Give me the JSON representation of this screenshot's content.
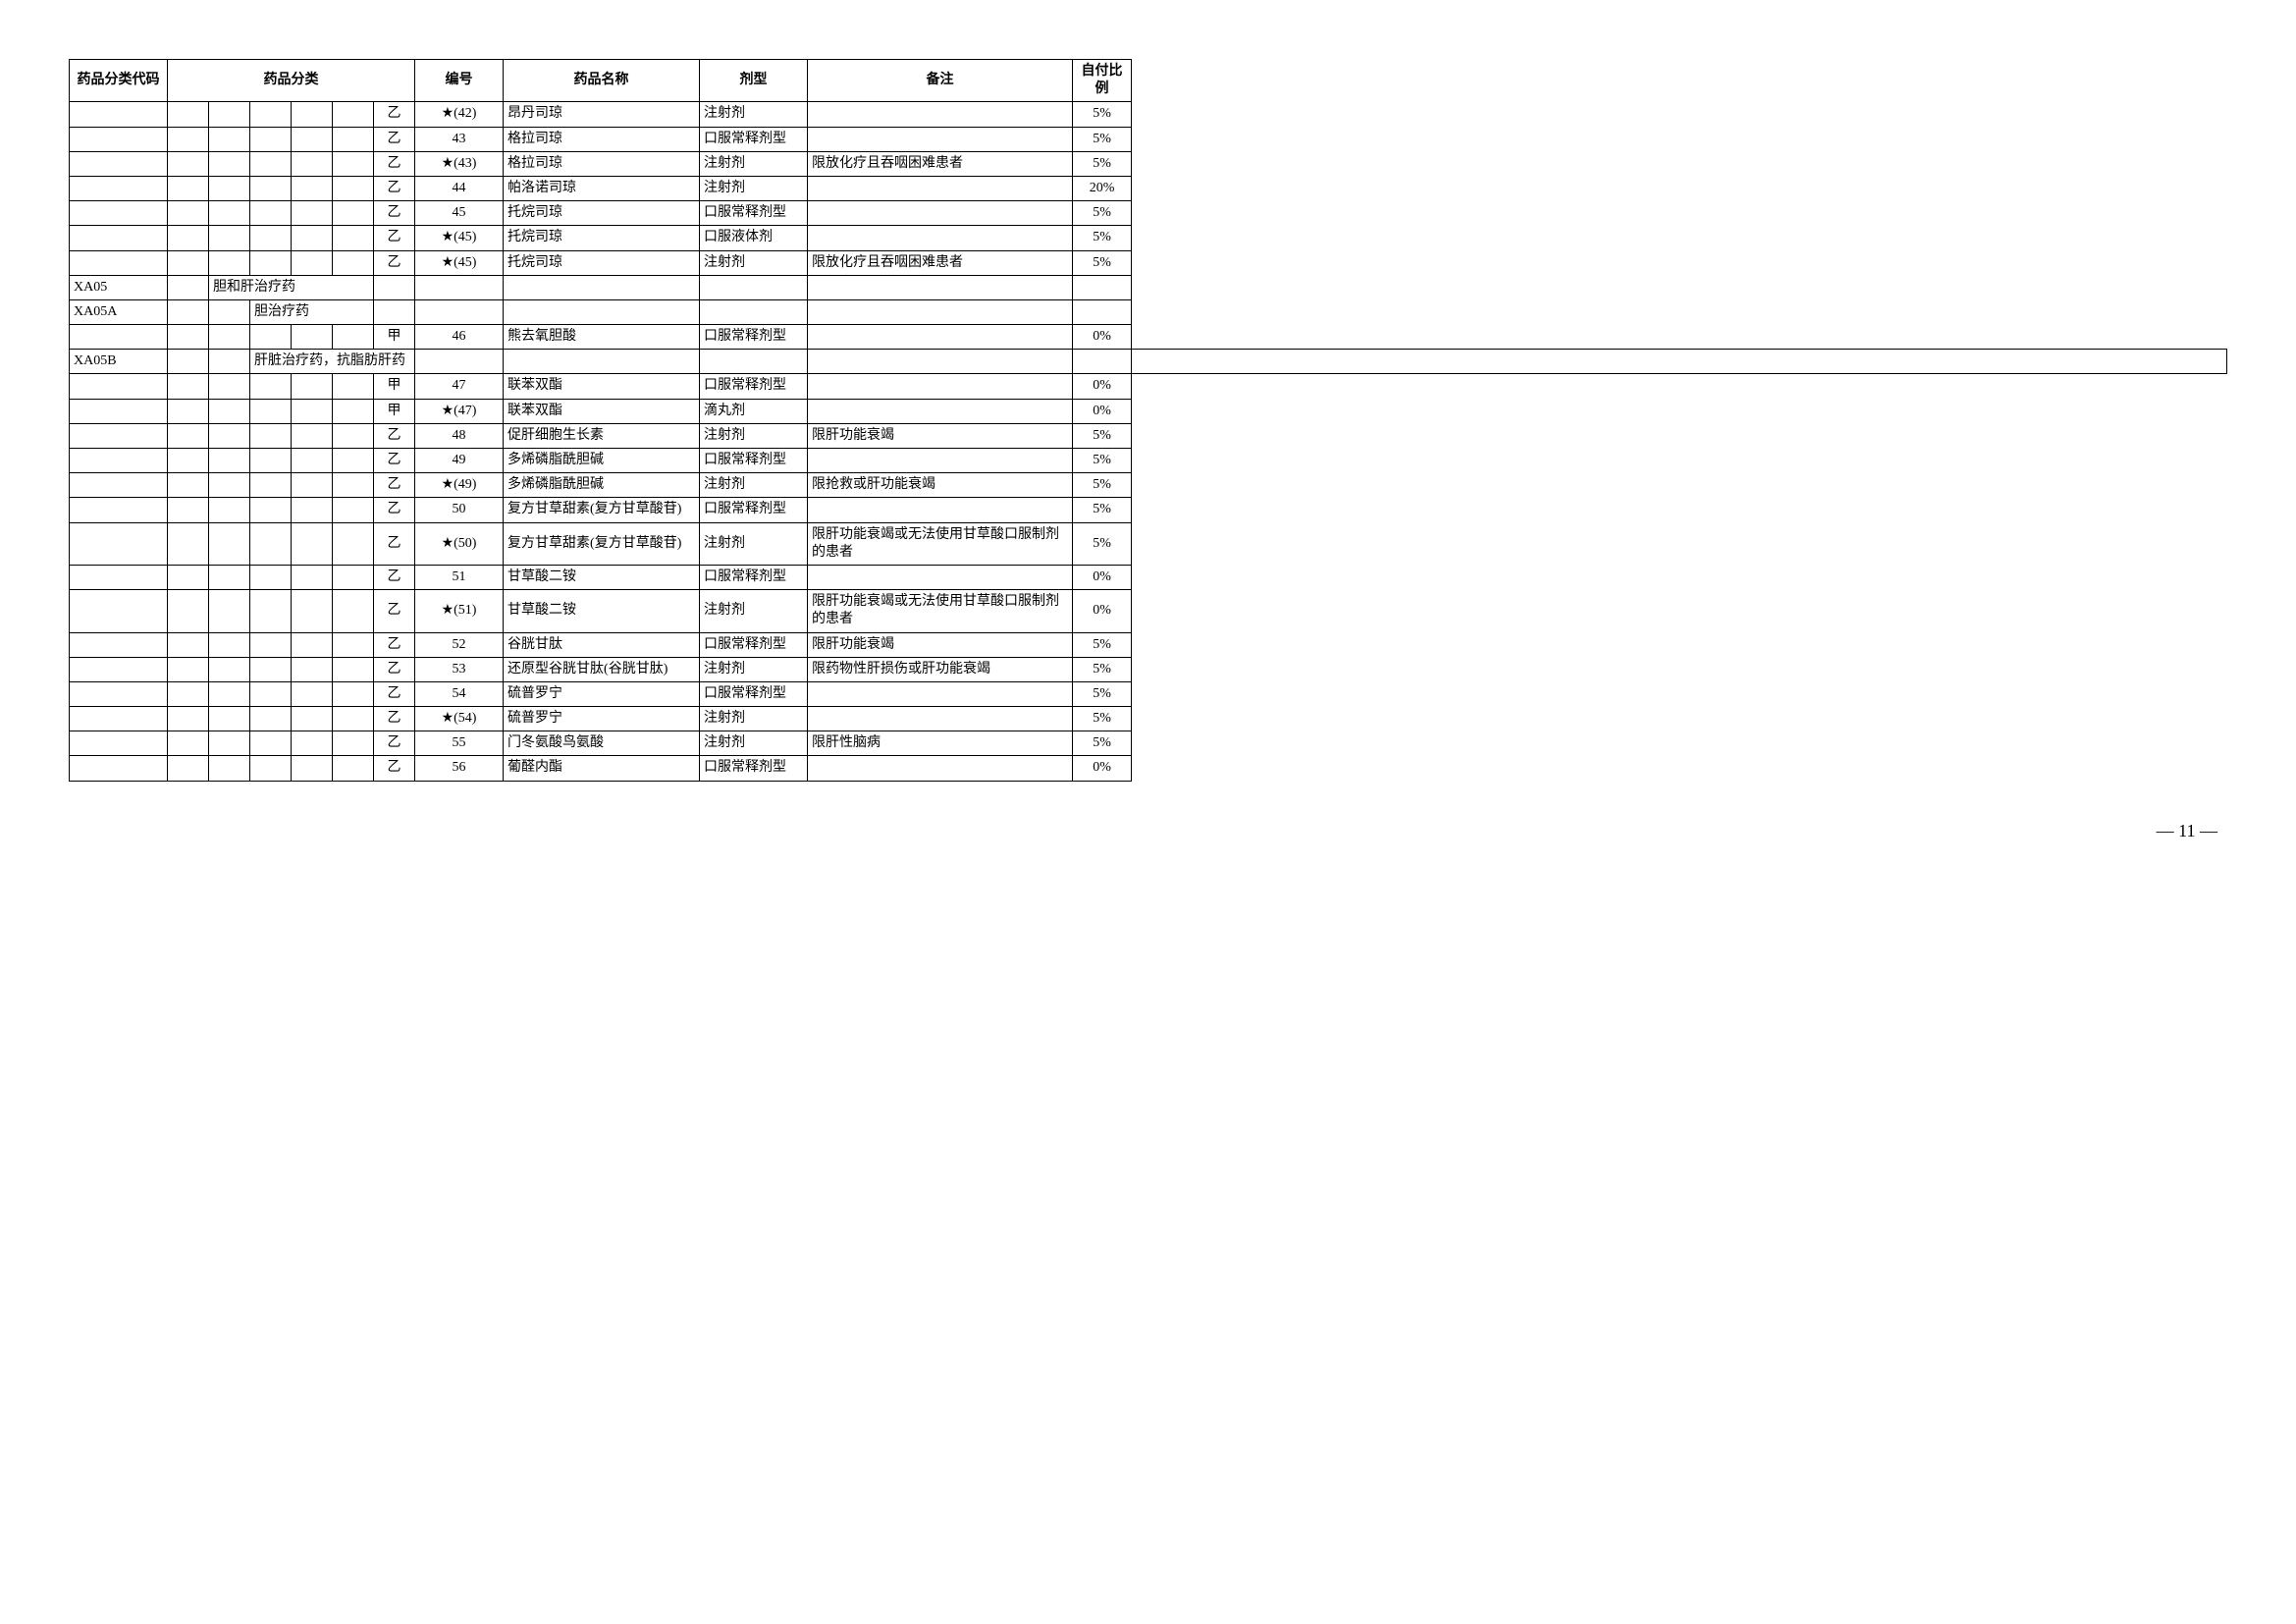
{
  "headers": {
    "code": "药品分类代码",
    "category": "药品分类",
    "num": "编号",
    "name": "药品名称",
    "form": "剂型",
    "note": "备注",
    "ratio": "自付比例"
  },
  "rows": [
    {
      "code": "",
      "cat1": "",
      "cat2": "",
      "cat3": "",
      "cat4": "",
      "cat5": "",
      "grade": "乙",
      "num": "★(42)",
      "name": "昂丹司琼",
      "form": "注射剂",
      "note": "",
      "ratio": "5%"
    },
    {
      "code": "",
      "cat1": "",
      "cat2": "",
      "cat3": "",
      "cat4": "",
      "cat5": "",
      "grade": "乙",
      "num": "43",
      "name": "格拉司琼",
      "form": "口服常释剂型",
      "note": "",
      "ratio": "5%"
    },
    {
      "code": "",
      "cat1": "",
      "cat2": "",
      "cat3": "",
      "cat4": "",
      "cat5": "",
      "grade": "乙",
      "num": "★(43)",
      "name": "格拉司琼",
      "form": "注射剂",
      "note": "限放化疗且吞咽困难患者",
      "ratio": "5%"
    },
    {
      "code": "",
      "cat1": "",
      "cat2": "",
      "cat3": "",
      "cat4": "",
      "cat5": "",
      "grade": "乙",
      "num": "44",
      "name": "帕洛诺司琼",
      "form": "注射剂",
      "note": "",
      "ratio": "20%"
    },
    {
      "code": "",
      "cat1": "",
      "cat2": "",
      "cat3": "",
      "cat4": "",
      "cat5": "",
      "grade": "乙",
      "num": "45",
      "name": "托烷司琼",
      "form": "口服常释剂型",
      "note": "",
      "ratio": "5%"
    },
    {
      "code": "",
      "cat1": "",
      "cat2": "",
      "cat3": "",
      "cat4": "",
      "cat5": "",
      "grade": "乙",
      "num": "★(45)",
      "name": "托烷司琼",
      "form": "口服液体剂",
      "note": "",
      "ratio": "5%"
    },
    {
      "code": "",
      "cat1": "",
      "cat2": "",
      "cat3": "",
      "cat4": "",
      "cat5": "",
      "grade": "乙",
      "num": "★(45)",
      "name": "托烷司琼",
      "form": "注射剂",
      "note": "限放化疗且吞咽困难患者",
      "ratio": "5%"
    },
    {
      "code": "XA05",
      "cat1": "",
      "cat2": "胆和肝治疗药",
      "cat3": "",
      "cat4": "",
      "cat5": "",
      "grade": "",
      "num": "",
      "name": "",
      "form": "",
      "note": "",
      "ratio": "",
      "span2": 4
    },
    {
      "code": "XA05A",
      "cat1": "",
      "cat2": "",
      "cat3": "胆治疗药",
      "cat4": "",
      "cat5": "",
      "grade": "",
      "num": "",
      "name": "",
      "form": "",
      "note": "",
      "ratio": "",
      "span3": 3
    },
    {
      "code": "",
      "cat1": "",
      "cat2": "",
      "cat3": "",
      "cat4": "",
      "cat5": "",
      "grade": "甲",
      "num": "46",
      "name": "熊去氧胆酸",
      "form": "口服常释剂型",
      "note": "",
      "ratio": "0%"
    },
    {
      "code": "XA05B",
      "cat1": "",
      "cat2": "",
      "cat3": "肝脏治疗药，抗脂肪肝药",
      "cat4": "",
      "cat5": "",
      "grade": "",
      "num": "",
      "name": "",
      "form": "",
      "note": "",
      "ratio": "",
      "span3": 4
    },
    {
      "code": "",
      "cat1": "",
      "cat2": "",
      "cat3": "",
      "cat4": "",
      "cat5": "",
      "grade": "甲",
      "num": "47",
      "name": "联苯双酯",
      "form": "口服常释剂型",
      "note": "",
      "ratio": "0%"
    },
    {
      "code": "",
      "cat1": "",
      "cat2": "",
      "cat3": "",
      "cat4": "",
      "cat5": "",
      "grade": "甲",
      "num": "★(47)",
      "name": "联苯双酯",
      "form": "滴丸剂",
      "note": "",
      "ratio": "0%"
    },
    {
      "code": "",
      "cat1": "",
      "cat2": "",
      "cat3": "",
      "cat4": "",
      "cat5": "",
      "grade": "乙",
      "num": "48",
      "name": "促肝细胞生长素",
      "form": "注射剂",
      "note": "限肝功能衰竭",
      "ratio": "5%"
    },
    {
      "code": "",
      "cat1": "",
      "cat2": "",
      "cat3": "",
      "cat4": "",
      "cat5": "",
      "grade": "乙",
      "num": "49",
      "name": "多烯磷脂酰胆碱",
      "form": "口服常释剂型",
      "note": "",
      "ratio": "5%"
    },
    {
      "code": "",
      "cat1": "",
      "cat2": "",
      "cat3": "",
      "cat4": "",
      "cat5": "",
      "grade": "乙",
      "num": "★(49)",
      "name": "多烯磷脂酰胆碱",
      "form": "注射剂",
      "note": "限抢救或肝功能衰竭",
      "ratio": "5%"
    },
    {
      "code": "",
      "cat1": "",
      "cat2": "",
      "cat3": "",
      "cat4": "",
      "cat5": "",
      "grade": "乙",
      "num": "50",
      "name": "复方甘草甜素(复方甘草酸苷)",
      "form": "口服常释剂型",
      "note": "",
      "ratio": "5%"
    },
    {
      "code": "",
      "cat1": "",
      "cat2": "",
      "cat3": "",
      "cat4": "",
      "cat5": "",
      "grade": "乙",
      "num": "★(50)",
      "name": "复方甘草甜素(复方甘草酸苷)",
      "form": "注射剂",
      "note": "限肝功能衰竭或无法使用甘草酸口服制剂的患者",
      "ratio": "5%"
    },
    {
      "code": "",
      "cat1": "",
      "cat2": "",
      "cat3": "",
      "cat4": "",
      "cat5": "",
      "grade": "乙",
      "num": "51",
      "name": "甘草酸二铵",
      "form": "口服常释剂型",
      "note": "",
      "ratio": "0%"
    },
    {
      "code": "",
      "cat1": "",
      "cat2": "",
      "cat3": "",
      "cat4": "",
      "cat5": "",
      "grade": "乙",
      "num": "★(51)",
      "name": "甘草酸二铵",
      "form": "注射剂",
      "note": "限肝功能衰竭或无法使用甘草酸口服制剂的患者",
      "ratio": "0%"
    },
    {
      "code": "",
      "cat1": "",
      "cat2": "",
      "cat3": "",
      "cat4": "",
      "cat5": "",
      "grade": "乙",
      "num": "52",
      "name": "谷胱甘肽",
      "form": "口服常释剂型",
      "note": "限肝功能衰竭",
      "ratio": "5%"
    },
    {
      "code": "",
      "cat1": "",
      "cat2": "",
      "cat3": "",
      "cat4": "",
      "cat5": "",
      "grade": "乙",
      "num": "53",
      "name": "还原型谷胱甘肽(谷胱甘肽)",
      "form": "注射剂",
      "note": "限药物性肝损伤或肝功能衰竭",
      "ratio": "5%"
    },
    {
      "code": "",
      "cat1": "",
      "cat2": "",
      "cat3": "",
      "cat4": "",
      "cat5": "",
      "grade": "乙",
      "num": "54",
      "name": "硫普罗宁",
      "form": "口服常释剂型",
      "note": "",
      "ratio": "5%"
    },
    {
      "code": "",
      "cat1": "",
      "cat2": "",
      "cat3": "",
      "cat4": "",
      "cat5": "",
      "grade": "乙",
      "num": "★(54)",
      "name": "硫普罗宁",
      "form": "注射剂",
      "note": "",
      "ratio": "5%"
    },
    {
      "code": "",
      "cat1": "",
      "cat2": "",
      "cat3": "",
      "cat4": "",
      "cat5": "",
      "grade": "乙",
      "num": "55",
      "name": "门冬氨酸鸟氨酸",
      "form": "注射剂",
      "note": "限肝性脑病",
      "ratio": "5%"
    },
    {
      "code": "",
      "cat1": "",
      "cat2": "",
      "cat3": "",
      "cat4": "",
      "cat5": "",
      "grade": "乙",
      "num": "56",
      "name": "葡醛内酯",
      "form": "口服常释剂型",
      "note": "",
      "ratio": "0%"
    }
  ],
  "pageNumber": "— 11 —"
}
